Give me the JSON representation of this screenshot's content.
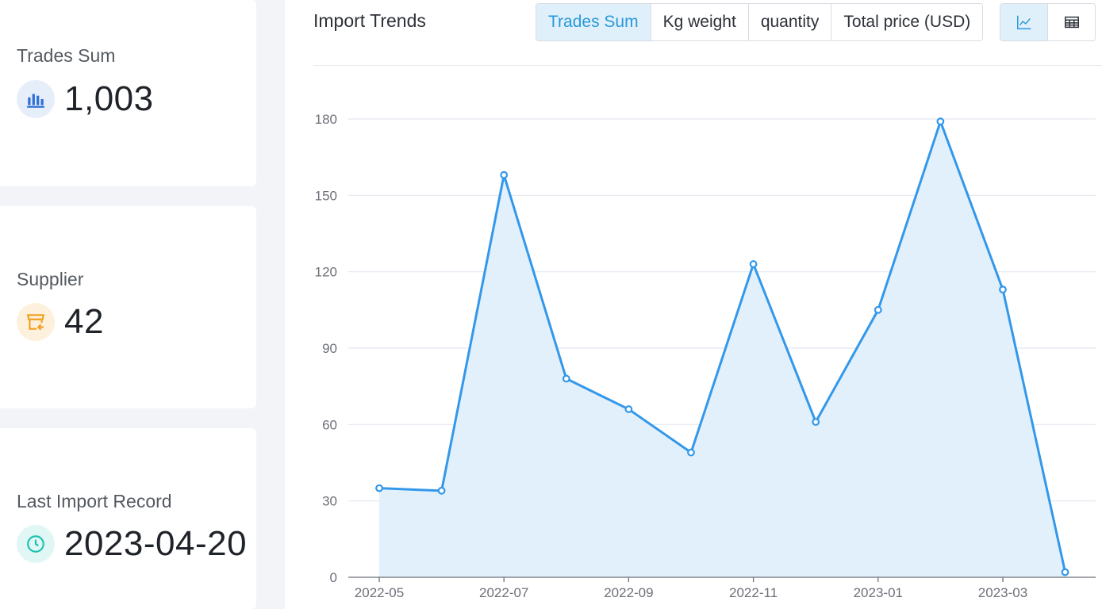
{
  "stats": {
    "trades": {
      "label": "Trades Sum",
      "value": "1,003",
      "icon": "bar-chart-icon",
      "color": "#2f6fd6"
    },
    "supplier": {
      "label": "Supplier",
      "value": "42",
      "icon": "storefront-icon",
      "color": "#f2a01e"
    },
    "last_record": {
      "label": "Last Import Record",
      "value": "2023-04-20",
      "icon": "clock-icon",
      "color": "#1fc1b4"
    }
  },
  "panel": {
    "title": "Import Trends",
    "metric_tabs": [
      "Trades Sum",
      "Kg weight",
      "quantity",
      "Total price (USD)"
    ],
    "active_metric": "Trades Sum",
    "view_toggle": [
      "line-chart-icon",
      "table-icon"
    ],
    "active_view": "line-chart-icon"
  },
  "chart_data": {
    "type": "area",
    "title": "",
    "xlabel": "",
    "ylabel": "",
    "x": [
      "2022-05",
      "2022-06",
      "2022-07",
      "2022-08",
      "2022-09",
      "2022-10",
      "2022-11",
      "2022-12",
      "2023-01",
      "2023-02",
      "2023-03",
      "2023-04"
    ],
    "x_tick_labels": [
      "2022-05",
      "2022-07",
      "2022-09",
      "2022-11",
      "2023-01",
      "2023-03"
    ],
    "series": [
      {
        "values": [
          35,
          34,
          158,
          78,
          66,
          49,
          123,
          61,
          105,
          179,
          113,
          2
        ]
      }
    ],
    "ylim": [
      0,
      180
    ],
    "y_ticks": [
      0,
      30,
      60,
      90,
      120,
      150,
      180
    ],
    "grid": true,
    "line_color": "#3398ea",
    "fill_color": "#e2f0fc"
  }
}
